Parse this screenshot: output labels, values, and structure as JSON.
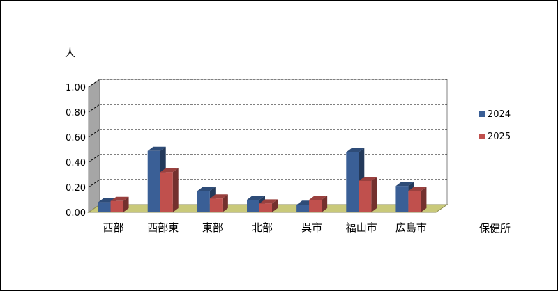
{
  "chart_data": {
    "type": "bar",
    "title": "",
    "ylabel": "人",
    "xlabel": "保健所",
    "categories": [
      "西部",
      "西部東",
      "東部",
      "北部",
      "呉市",
      "福山市",
      "広島市"
    ],
    "series": [
      {
        "name": "2024",
        "color": "#3a5f96",
        "values": [
          0.08,
          0.49,
          0.17,
          0.1,
          0.06,
          0.48,
          0.21
        ]
      },
      {
        "name": "2025",
        "color": "#c0504d",
        "values": [
          0.09,
          0.32,
          0.11,
          0.07,
          0.1,
          0.25,
          0.17
        ]
      }
    ],
    "ylim": [
      0,
      1.0
    ],
    "yticks": [
      "0.00",
      "0.20",
      "0.40",
      "0.60",
      "0.80",
      "1.00"
    ],
    "grid": true,
    "legend_position": "right"
  }
}
